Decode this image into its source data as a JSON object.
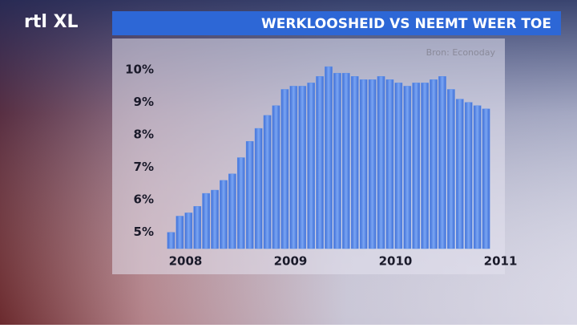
{
  "brand": "rtl XL",
  "chart_data": {
    "type": "bar",
    "title": "WERKLOOSHEID VS NEEMT WEER TOE",
    "source": "Bron: Econoday",
    "categories": [
      "2008",
      null,
      null,
      null,
      null,
      null,
      null,
      null,
      null,
      null,
      null,
      null,
      "2009",
      null,
      null,
      null,
      null,
      null,
      null,
      null,
      null,
      null,
      null,
      null,
      "2010",
      null,
      null,
      null,
      null,
      null,
      null,
      null,
      null,
      null,
      null,
      null,
      "2011"
    ],
    "values": [
      5.0,
      5.5,
      5.6,
      5.8,
      6.2,
      6.3,
      6.6,
      6.8,
      7.3,
      7.8,
      8.2,
      8.6,
      8.9,
      9.4,
      9.5,
      9.5,
      9.6,
      9.8,
      10.1,
      9.9,
      9.9,
      9.8,
      9.7,
      9.7,
      9.8,
      9.7,
      9.6,
      9.5,
      9.6,
      9.6,
      9.7,
      9.8,
      9.4,
      9.1,
      9.0,
      8.9,
      8.8
    ],
    "color": "#5b8fe8",
    "ylim": [
      4.5,
      10.3
    ],
    "yticks": [
      {
        "value": 5,
        "label": "5%"
      },
      {
        "value": 6,
        "label": "6%"
      },
      {
        "value": 7,
        "label": "7%"
      },
      {
        "value": 8,
        "label": "8%"
      },
      {
        "value": 9,
        "label": "9%"
      },
      {
        "value": 10,
        "label": "10%"
      }
    ],
    "grid": false
  }
}
